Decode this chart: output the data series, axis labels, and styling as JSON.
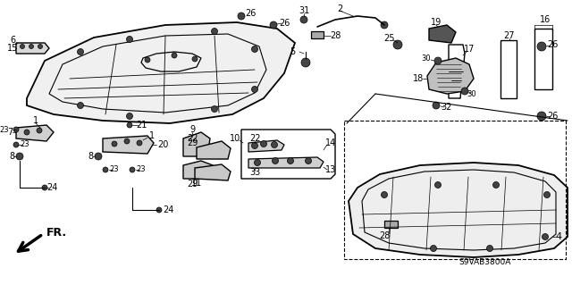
{
  "background_color": "#ffffff",
  "line_color": "#000000",
  "diagram_code": "S9VAB3800A",
  "fig_width": 6.4,
  "fig_height": 3.19,
  "dpi": 100
}
